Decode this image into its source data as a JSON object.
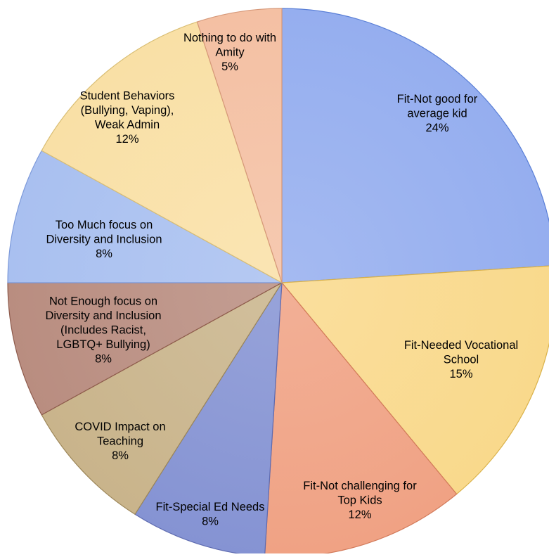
{
  "chart_data": {
    "type": "pie",
    "title": "",
    "slices": [
      {
        "label": [
          "Fit-Not good for",
          "average kid"
        ],
        "value_label": "24%",
        "value": 24,
        "color": "#95AEEF",
        "stroke": "#5A7FD6"
      },
      {
        "label": [
          "Fit-Needed Vocational",
          "School"
        ],
        "value_label": "15%",
        "value": 15,
        "color": "#F9D98C",
        "stroke": "#D9B14A"
      },
      {
        "label": [
          "Fit-Not challenging for",
          "Top Kids"
        ],
        "value_label": "12%",
        "value": 12,
        "color": "#F0A284",
        "stroke": "#D27A5A"
      },
      {
        "label": [
          "Fit-Special Ed Needs"
        ],
        "value_label": "8%",
        "value": 8,
        "color": "#8593D3",
        "stroke": "#5E6BB0"
      },
      {
        "label": [
          "COVID Impact on",
          "Teaching"
        ],
        "value_label": "8%",
        "value": 8,
        "color": "#C9B48B",
        "stroke": "#9C8658"
      },
      {
        "label": [
          "Not Enough focus on",
          "Diversity and Inclusion",
          "(Includes Racist,",
          "LGBTQ+ Bullying)"
        ],
        "value_label": "8%",
        "value": 8,
        "color": "#B98D80",
        "stroke": "#8E5B4C"
      },
      {
        "label": [
          "Too Much focus on",
          "Diversity and Inclusion"
        ],
        "value_label": "8%",
        "value": 8,
        "color": "#A9C0F0",
        "stroke": "#7C99DA"
      },
      {
        "label": [
          "Student Behaviors",
          "(Bullying, Vaping),",
          "Weak Admin"
        ],
        "value_label": "12%",
        "value": 12,
        "color": "#F9E0A6",
        "stroke": "#D9BE74"
      },
      {
        "label": [
          "Nothing to do with",
          "Amity"
        ],
        "value_label": "5%",
        "value": 5,
        "color": "#F4C0A3",
        "stroke": "#D69879"
      }
    ],
    "start_angle_deg": 0,
    "direction": "clockwise",
    "legend": "none"
  }
}
